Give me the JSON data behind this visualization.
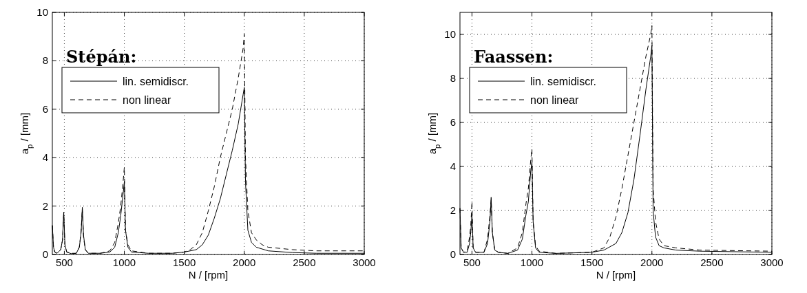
{
  "chart_data": [
    {
      "type": "line",
      "title": "Stépán:",
      "xlabel": "N / [rpm]",
      "ylabel": "a$_{p}$ / [mm]",
      "xlim": [
        400,
        3000
      ],
      "xticks": [
        500,
        1000,
        1500,
        2000,
        2500,
        3000
      ],
      "ylim": [
        0,
        10
      ],
      "yticks": [
        0,
        2,
        4,
        6,
        8,
        10
      ],
      "grid": true,
      "legend": "top left",
      "series": [
        {
          "name": "lin. semidiscr.",
          "color": "#000000",
          "line_style": "solid",
          "x": [
            400,
            410,
            420,
            440,
            470,
            485,
            495,
            505,
            520,
            560,
            600,
            625,
            640,
            650,
            660,
            675,
            700,
            800,
            880,
            920,
            950,
            970,
            990,
            1000,
            1010,
            1030,
            1060,
            1200,
            1400,
            1500,
            1600,
            1650,
            1700,
            1750,
            1800,
            1850,
            1900,
            1950,
            1990,
            2000,
            2010,
            2030,
            2060,
            2100,
            2200,
            2400,
            2600,
            3000
          ],
          "values": [
            1.2,
            0.3,
            0.1,
            0.05,
            0.2,
            0.6,
            1.75,
            0.4,
            0.1,
            0.03,
            0.05,
            0.3,
            0.9,
            1.95,
            0.8,
            0.2,
            0.05,
            0.05,
            0.1,
            0.3,
            0.9,
            1.6,
            2.5,
            3.0,
            1.0,
            0.3,
            0.1,
            0.05,
            0.05,
            0.1,
            0.2,
            0.4,
            0.8,
            1.5,
            2.3,
            3.3,
            4.3,
            5.4,
            6.6,
            6.9,
            3.0,
            1.0,
            0.5,
            0.3,
            0.15,
            0.08,
            0.05,
            0.05
          ]
        },
        {
          "name": "non linear",
          "color": "#000000",
          "line_style": "dashed",
          "x": [
            400,
            410,
            420,
            440,
            470,
            485,
            495,
            505,
            520,
            560,
            600,
            625,
            640,
            650,
            660,
            675,
            700,
            800,
            880,
            920,
            950,
            970,
            990,
            1000,
            1010,
            1030,
            1060,
            1200,
            1400,
            1500,
            1550,
            1600,
            1650,
            1700,
            1750,
            1800,
            1850,
            1900,
            1950,
            1990,
            2000,
            2010,
            2030,
            2060,
            2100,
            2150,
            2200,
            2400,
            2600,
            3000
          ],
          "values": [
            1.2,
            0.3,
            0.1,
            0.05,
            0.2,
            0.6,
            1.7,
            0.4,
            0.1,
            0.05,
            0.05,
            0.3,
            1.0,
            1.9,
            0.7,
            0.2,
            0.05,
            0.05,
            0.15,
            0.5,
            1.3,
            2.0,
            3.0,
            3.6,
            1.0,
            0.4,
            0.15,
            0.05,
            0.05,
            0.1,
            0.2,
            0.4,
            0.9,
            1.8,
            2.8,
            4.0,
            5.0,
            6.0,
            7.3,
            8.5,
            9.1,
            4.0,
            1.8,
            0.9,
            0.6,
            0.4,
            0.3,
            0.2,
            0.15,
            0.15
          ]
        }
      ]
    },
    {
      "type": "line",
      "title": "Faassen:",
      "xlabel": "N / [rpm]",
      "ylabel": "a$_{p}$ / [mm]",
      "xlim": [
        400,
        3000
      ],
      "xticks": [
        500,
        1000,
        1500,
        2000,
        2500,
        3000
      ],
      "ylim": [
        0,
        11
      ],
      "yticks": [
        0,
        2,
        4,
        6,
        8,
        10
      ],
      "grid": true,
      "legend": "top left",
      "series": [
        {
          "name": "lin. semidiscr.",
          "color": "#000000",
          "line_style": "solid",
          "x": [
            400,
            410,
            430,
            460,
            480,
            490,
            500,
            510,
            530,
            600,
            630,
            650,
            660,
            670,
            690,
            720,
            800,
            880,
            920,
            950,
            970,
            990,
            1000,
            1010,
            1030,
            1060,
            1200,
            1500,
            1600,
            1700,
            1750,
            1800,
            1850,
            1900,
            1950,
            1990,
            2000,
            2010,
            2030,
            2060,
            2100,
            2200,
            2400,
            3000
          ],
          "values": [
            2.1,
            0.3,
            0.1,
            0.1,
            0.5,
            1.0,
            1.8,
            0.3,
            0.1,
            0.1,
            0.5,
            1.5,
            2.6,
            1.0,
            0.2,
            0.1,
            0.05,
            0.2,
            0.7,
            1.8,
            2.4,
            3.8,
            4.2,
            1.5,
            0.3,
            0.1,
            0.05,
            0.1,
            0.2,
            0.5,
            1.0,
            1.9,
            3.4,
            5.4,
            7.5,
            9.0,
            9.5,
            2.0,
            0.8,
            0.4,
            0.3,
            0.2,
            0.15,
            0.1
          ]
        },
        {
          "name": "non linear",
          "color": "#000000",
          "line_style": "dashed",
          "x": [
            400,
            410,
            430,
            460,
            480,
            490,
            500,
            510,
            530,
            600,
            630,
            650,
            660,
            670,
            690,
            720,
            800,
            880,
            920,
            950,
            970,
            990,
            1000,
            1010,
            1030,
            1060,
            1200,
            1500,
            1600,
            1650,
            1700,
            1750,
            1800,
            1850,
            1900,
            1950,
            1990,
            2000,
            2010,
            2030,
            2060,
            2100,
            2200,
            2400,
            3000
          ],
          "values": [
            2.1,
            0.3,
            0.1,
            0.15,
            0.8,
            1.3,
            2.4,
            0.3,
            0.1,
            0.1,
            0.7,
            1.8,
            2.5,
            1.0,
            0.2,
            0.1,
            0.05,
            0.3,
            1.0,
            2.3,
            3.0,
            4.3,
            4.8,
            1.5,
            0.4,
            0.15,
            0.05,
            0.1,
            0.3,
            0.8,
            1.7,
            3.0,
            4.5,
            6.0,
            7.5,
            9.0,
            10.0,
            10.4,
            3.0,
            1.5,
            0.7,
            0.4,
            0.3,
            0.2,
            0.15
          ]
        }
      ]
    }
  ]
}
